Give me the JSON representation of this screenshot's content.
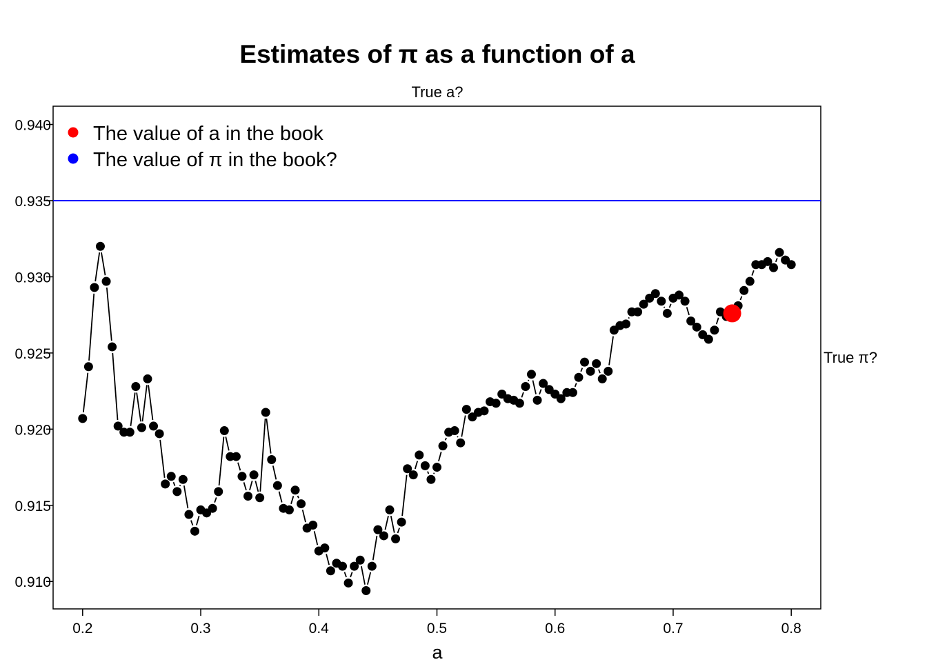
{
  "chart_data": {
    "type": "scatter",
    "title": "Estimates of π as a function of a",
    "subtitle": "True a?",
    "xlabel": "a",
    "ylabel": "",
    "xlim": [
      0.175,
      0.825
    ],
    "ylim": [
      0.9082,
      0.9412
    ],
    "x_ticks": [
      0.2,
      0.3,
      0.4,
      0.5,
      0.6,
      0.7,
      0.8
    ],
    "x_tick_labels": [
      "0.2",
      "0.3",
      "0.4",
      "0.5",
      "0.6",
      "0.7",
      "0.8"
    ],
    "y_ticks": [
      0.91,
      0.915,
      0.92,
      0.925,
      0.93,
      0.935,
      0.94
    ],
    "y_tick_labels": [
      "0.910",
      "0.915",
      "0.920",
      "0.925",
      "0.930",
      "0.935",
      "0.940"
    ],
    "grid": false,
    "legend_position": "top-left",
    "legend": [
      {
        "label": "The value of a in the book",
        "color": "#ff0000"
      },
      {
        "label": "The value of π in the book?",
        "color": "#0000ff"
      }
    ],
    "hline": {
      "y": 0.935,
      "color": "#0000ff",
      "label": "True π?"
    },
    "highlight_point": {
      "x": 0.75,
      "y": 0.9276,
      "color": "#ff0000"
    },
    "series": [
      {
        "color": "#000000",
        "style": "points-dashed-line",
        "x": [
          0.2,
          0.205,
          0.21,
          0.215,
          0.22,
          0.225,
          0.23,
          0.235,
          0.24,
          0.245,
          0.25,
          0.255,
          0.26,
          0.265,
          0.27,
          0.275,
          0.28,
          0.285,
          0.29,
          0.295,
          0.3,
          0.305,
          0.31,
          0.315,
          0.32,
          0.325,
          0.33,
          0.335,
          0.34,
          0.345,
          0.35,
          0.355,
          0.36,
          0.365,
          0.37,
          0.375,
          0.38,
          0.385,
          0.39,
          0.395,
          0.4,
          0.405,
          0.41,
          0.415,
          0.42,
          0.425,
          0.43,
          0.435,
          0.44,
          0.445,
          0.45,
          0.455,
          0.46,
          0.465,
          0.47,
          0.475,
          0.48,
          0.485,
          0.49,
          0.495,
          0.5,
          0.505,
          0.51,
          0.515,
          0.52,
          0.525,
          0.53,
          0.535,
          0.54,
          0.545,
          0.55,
          0.555,
          0.56,
          0.565,
          0.57,
          0.575,
          0.58,
          0.585,
          0.59,
          0.595,
          0.6,
          0.605,
          0.61,
          0.615,
          0.62,
          0.625,
          0.63,
          0.635,
          0.64,
          0.645,
          0.65,
          0.655,
          0.66,
          0.665,
          0.67,
          0.675,
          0.68,
          0.685,
          0.69,
          0.695,
          0.7,
          0.705,
          0.71,
          0.715,
          0.72,
          0.725,
          0.73,
          0.735,
          0.74,
          0.745,
          0.75,
          0.755,
          0.76,
          0.765,
          0.77,
          0.775,
          0.78,
          0.785,
          0.79,
          0.795,
          0.8
        ],
        "y": [
          0.9207,
          0.9241,
          0.9293,
          0.932,
          0.9297,
          0.9254,
          0.9202,
          0.9198,
          0.9198,
          0.9228,
          0.9201,
          0.9233,
          0.9202,
          0.9197,
          0.9164,
          0.9169,
          0.9159,
          0.9167,
          0.9144,
          0.9133,
          0.9147,
          0.9145,
          0.9148,
          0.9159,
          0.9199,
          0.9182,
          0.9182,
          0.9169,
          0.9156,
          0.917,
          0.9155,
          0.9211,
          0.918,
          0.9163,
          0.9148,
          0.9147,
          0.916,
          0.9151,
          0.9135,
          0.9137,
          0.912,
          0.9122,
          0.9107,
          0.9112,
          0.911,
          0.9099,
          0.911,
          0.9114,
          0.9094,
          0.911,
          0.9134,
          0.913,
          0.9147,
          0.9128,
          0.9139,
          0.9174,
          0.917,
          0.9183,
          0.9176,
          0.9167,
          0.9175,
          0.9189,
          0.9198,
          0.9199,
          0.9191,
          0.9213,
          0.9208,
          0.9211,
          0.9212,
          0.9218,
          0.9217,
          0.9223,
          0.922,
          0.9219,
          0.9217,
          0.9228,
          0.9236,
          0.9219,
          0.923,
          0.9226,
          0.9223,
          0.922,
          0.9224,
          0.9224,
          0.9234,
          0.9244,
          0.9238,
          0.9243,
          0.9233,
          0.9238,
          0.9265,
          0.9268,
          0.9269,
          0.9277,
          0.9277,
          0.9282,
          0.9286,
          0.9289,
          0.9284,
          0.9276,
          0.9286,
          0.9288,
          0.9284,
          0.9271,
          0.9267,
          0.9262,
          0.9259,
          0.9265,
          0.9277,
          0.9274,
          0.9276,
          0.9281,
          0.9291,
          0.9297,
          0.9308,
          0.9308,
          0.931,
          0.9306,
          0.9316,
          0.9311,
          0.9308
        ]
      }
    ]
  }
}
